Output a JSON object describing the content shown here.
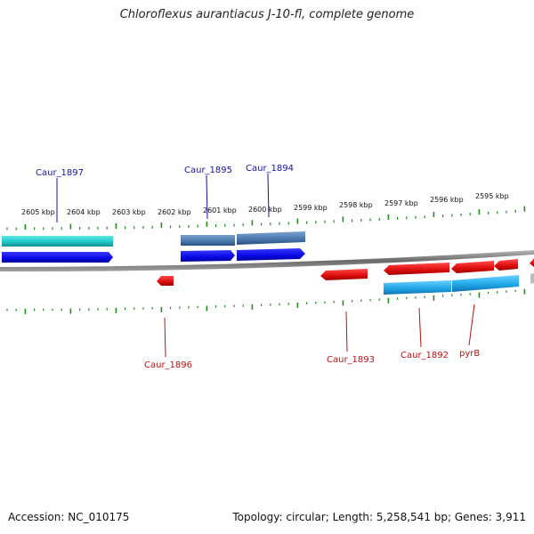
{
  "title": "Chloroflexus aurantiacus J-10-fl, complete genome",
  "footer": {
    "accession": "Accession: NC_010175",
    "summary": "Topology: circular; Length: 5,258,541 bp; Genes: 3,911"
  },
  "scale": {
    "labels": [
      "2605 kbp",
      "2604 kbp",
      "2603 kbp",
      "2602 kbp",
      "2601 kbp",
      "2600 kbp",
      "2599 kbp",
      "2598 kbp",
      "2597 kbp",
      "2596 kbp",
      "2595 kbp"
    ]
  },
  "genes": {
    "forward": [
      "Caur_1897",
      "Caur_1895",
      "Caur_1894"
    ],
    "reverse": [
      "Caur_1896",
      "Caur_1893",
      "Caur_1892",
      "pyrB"
    ]
  },
  "colors": {
    "forward_cds": "#0a0ae8",
    "reverse_cds": "#e01010",
    "forward_label": "#1111aa",
    "reverse_label": "#c01010",
    "tick": "#1e8c1e",
    "backbone": "#8a8a8a",
    "product_cyan": "#20c8c8",
    "product_steel": "#4a7ab0",
    "product_sky": "#20a8e8"
  }
}
